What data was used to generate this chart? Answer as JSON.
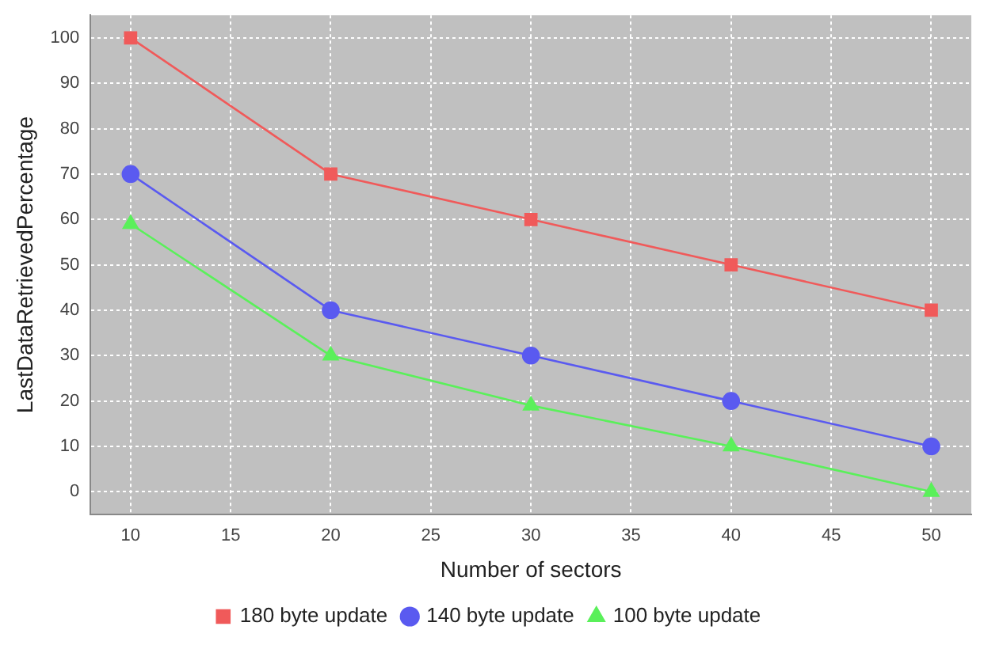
{
  "chart_data": {
    "type": "line",
    "xlabel": "Number of sectors",
    "ylabel": "LastDataRetrievedPercentage",
    "x": [
      10,
      20,
      30,
      40,
      50
    ],
    "series": [
      {
        "name": "180 byte update",
        "color": "#f05a5a",
        "marker": "square",
        "values": [
          100,
          70,
          60,
          50,
          40
        ]
      },
      {
        "name": "140 byte update",
        "color": "#5a5af0",
        "marker": "circle",
        "values": [
          70,
          40,
          30,
          20,
          10
        ]
      },
      {
        "name": "100 byte update",
        "color": "#5af05a",
        "marker": "triangle",
        "values": [
          59,
          30,
          19,
          10,
          0
        ]
      }
    ],
    "xlim": [
      8,
      52
    ],
    "xticks": [
      10,
      15,
      20,
      25,
      30,
      35,
      40,
      45,
      50
    ],
    "ylim": [
      -5,
      105
    ],
    "yticks": [
      0,
      10,
      20,
      30,
      40,
      50,
      60,
      70,
      80,
      90,
      100
    ],
    "grid": true,
    "legend": "bottom",
    "line_style": "solid"
  }
}
